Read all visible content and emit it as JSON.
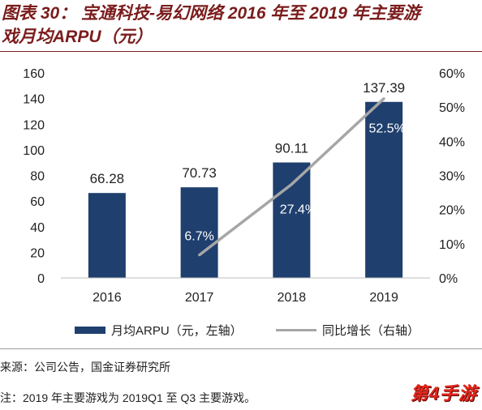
{
  "title_lines": [
    "图表 30： 宝通科技-易幻网络 2016 年至 2019 年主要游",
    "戏月均ARPU（元）"
  ],
  "chart_data": {
    "type": "bar",
    "categories": [
      "2016",
      "2017",
      "2018",
      "2019"
    ],
    "series": [
      {
        "name": "月均ARPU（元，左轴）",
        "type": "bar",
        "axis": "left",
        "values": [
          66.28,
          70.73,
          90.11,
          137.39
        ],
        "labels": [
          "66.28",
          "70.73",
          "90.11",
          "137.39"
        ]
      },
      {
        "name": "同比增长（右轴）",
        "type": "line",
        "axis": "right",
        "values": [
          null,
          6.7,
          27.4,
          52.5
        ],
        "labels": [
          null,
          "6.7%",
          "27.4%",
          "52.5%"
        ]
      }
    ],
    "y_left": {
      "min": 0,
      "max": 160,
      "ticks": [
        "0",
        "20",
        "40",
        "60",
        "80",
        "100",
        "120",
        "140",
        "160"
      ]
    },
    "y_right": {
      "min": 0,
      "max": 60,
      "ticks": [
        "0%",
        "10%",
        "20%",
        "30%",
        "40%",
        "50%",
        "60%"
      ]
    },
    "grid": false,
    "legend": "bottom"
  },
  "colors": {
    "bar": "#1F3F6E",
    "line": "#A6A6A6",
    "title": "#7B1C1C",
    "watermark": "#E3241B"
  },
  "source": "来源：公司公告，国金证券研究所",
  "note": "注：2019 年主要游戏为 2019Q1 至 Q3 主要游戏。",
  "watermark": "第4手游"
}
